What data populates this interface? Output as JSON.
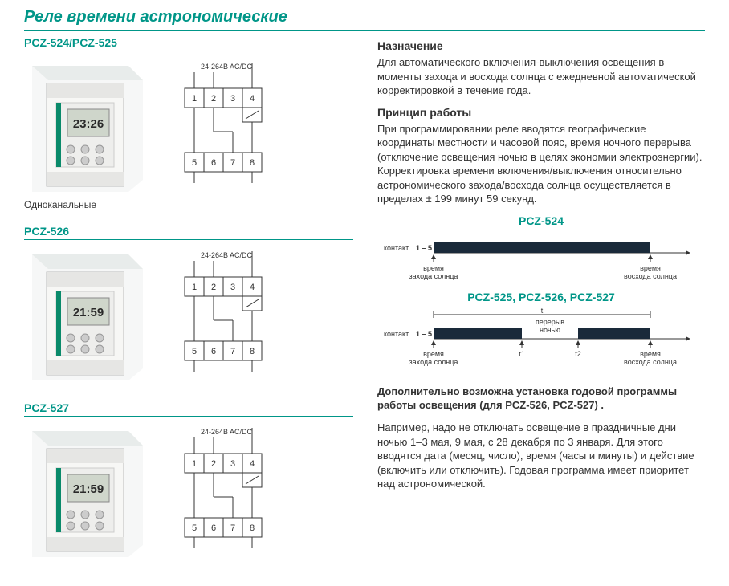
{
  "page": {
    "title": "Реле времени астрономические"
  },
  "products": [
    {
      "title": "PCZ-524/PCZ-525",
      "caption": "Одноканальные",
      "display": "23:26",
      "voltage_label": "24-264B AC/DC"
    },
    {
      "title": "PCZ-526",
      "caption": "",
      "display": "21:59",
      "voltage_label": "24-264B AC/DC"
    },
    {
      "title": "PCZ-527",
      "caption": "",
      "display": "21:59",
      "voltage_label": "24-264B AC/DC"
    }
  ],
  "wiring": {
    "top_row": [
      "1",
      "2",
      "3",
      "4"
    ],
    "bottom_row": [
      "5",
      "6",
      "7",
      "8"
    ]
  },
  "text": {
    "purpose_h": "Назначение",
    "purpose_p": "Для автоматического включения-выключения освещения в моменты захода и восхода солнца с ежедневной автоматической коррек­тировкой в течение года.",
    "principle_h": "Принцип работы",
    "principle_p": "При программировании реле вводятся географические координаты местности и часовой пояс, время ночного перерыва (отключение освещения ночью в целях экономии электроэнергии). Корректи­ровка времени включения/выключения относительно астроно­мического захода/восхода солнца осуществляется в пределах ± 199 минут 59 секунд.",
    "additional_b": "Дополнительно возможна установка годовой программы работы освещения (для PCZ-526, PCZ-527) .",
    "additional_p": "Например, надо не отключать освещение в праздничные дни ночью 1–3 мая, 9 мая, с 28 декабря по 3 января. Для этого вводятся дата (месяц, число), время (часы и минуты) и действие (включить или отключить). Годовая программа имеет приоритет над астрономической."
  },
  "timing": {
    "diag1_title": "PCZ-524",
    "diag2_title": "PCZ-525, PCZ-526, PCZ-527",
    "contact_label": "контакт",
    "contact_pins": "1 – 5",
    "sunset_label_1": "время",
    "sunset_label_2": "захода солнца",
    "sunrise_label_1": "время",
    "sunrise_label_2": "восхода солнца",
    "night_break_1": "перерыв",
    "night_break_2": "ночью",
    "t": "t",
    "t1": "t1",
    "t2": "t2",
    "bar_color": "#1a2a3a",
    "axis_color": "#333",
    "text_color": "#333",
    "font_size_small": 9
  }
}
